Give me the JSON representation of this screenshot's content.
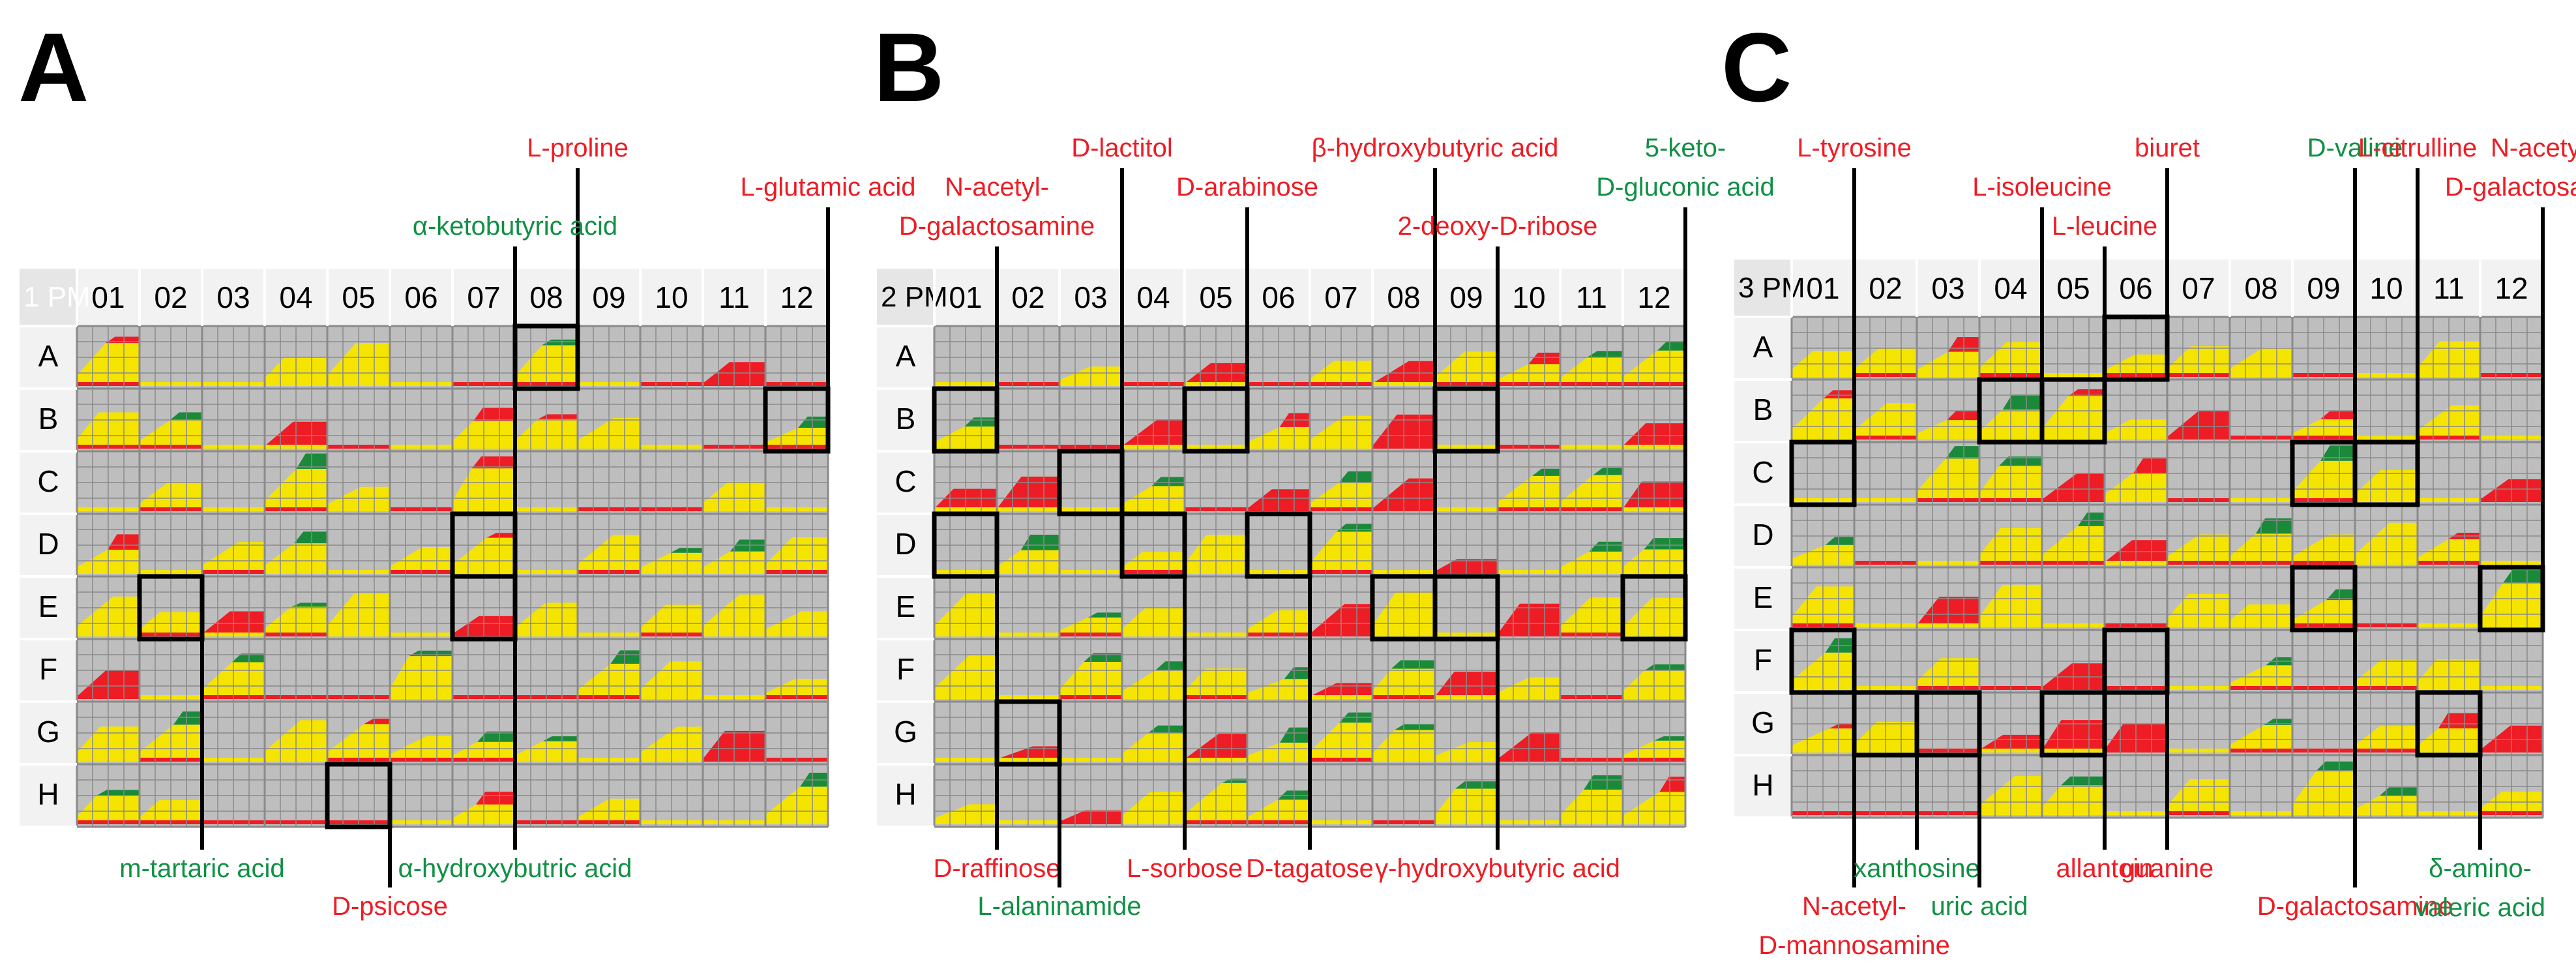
{
  "panels": [
    {
      "letter": "A",
      "plate_label": "1 PM",
      "columns": [
        "01",
        "02",
        "03",
        "04",
        "05",
        "06",
        "07",
        "08",
        "09",
        "10",
        "11",
        "12"
      ],
      "rows": [
        "A",
        "B",
        "C",
        "D",
        "E",
        "F",
        "G",
        "H"
      ],
      "highlights": [
        {
          "well": "A08",
          "name": "L-proline",
          "color": "red",
          "side": "top",
          "lines": [
            "L-proline"
          ]
        },
        {
          "well": "D07",
          "name": "α-ketobutyric acid",
          "color": "green",
          "side": "top",
          "lines": [
            "α-ketobutyric acid"
          ]
        },
        {
          "well": "B12",
          "name": "L-glutamic acid",
          "color": "red",
          "side": "top",
          "lines": [
            "L-glutamic acid"
          ]
        },
        {
          "well": "E02",
          "name": "m-tartaric acid",
          "color": "green",
          "side": "bottom",
          "lines": [
            "m-tartaric acid"
          ]
        },
        {
          "well": "H05",
          "name": "D-psicose",
          "color": "red",
          "side": "bottom",
          "lines": [
            "D-psicose"
          ]
        },
        {
          "well": "E07",
          "name": "α-hydroxybutric acid",
          "color": "green",
          "side": "bottom",
          "lines": [
            "α-hydroxybutric acid"
          ]
        }
      ]
    },
    {
      "letter": "B",
      "plate_label": "2 PM",
      "columns": [
        "01",
        "02",
        "03",
        "04",
        "05",
        "06",
        "07",
        "08",
        "09",
        "10",
        "11",
        "12"
      ],
      "rows": [
        "A",
        "B",
        "C",
        "D",
        "E",
        "F",
        "G",
        "H"
      ],
      "highlights": [
        {
          "well": "B01",
          "name": "N-acetyl-D-galactosamine",
          "color": "red",
          "side": "top",
          "lines": [
            "N-acetyl-",
            "D-galactosamine"
          ]
        },
        {
          "well": "C03",
          "name": "D-lactitol",
          "color": "red",
          "side": "top",
          "lines": [
            "D-lactitol"
          ]
        },
        {
          "well": "B05",
          "name": "D-arabinose",
          "color": "red",
          "side": "top",
          "lines": [
            "D-arabinose"
          ]
        },
        {
          "well": "E08",
          "name": "β-hydroxybutyric acid",
          "color": "red",
          "side": "top",
          "lines": [
            "β-hydroxybutyric acid"
          ]
        },
        {
          "well": "B09",
          "name": "2-deoxy-D-ribose",
          "color": "red",
          "side": "top",
          "lines": [
            "2-deoxy-D-ribose"
          ]
        },
        {
          "well": "E12",
          "name": "5-keto-D-gluconic acid",
          "color": "green",
          "side": "top",
          "lines": [
            "5-keto-",
            "D-gluconic acid"
          ]
        },
        {
          "well": "D01",
          "name": "D-raffinose",
          "color": "red",
          "side": "bottom",
          "lines": [
            "D-raffinose"
          ]
        },
        {
          "well": "G02",
          "name": "L-alaninamide",
          "color": "green",
          "side": "bottom",
          "lines": [
            "L-alaninamide"
          ]
        },
        {
          "well": "D04",
          "name": "L-sorbose",
          "color": "red",
          "side": "bottom",
          "lines": [
            "L-sorbose"
          ]
        },
        {
          "well": "D06",
          "name": "D-tagatose",
          "color": "red",
          "side": "bottom",
          "lines": [
            "D-tagatose"
          ]
        },
        {
          "well": "E09",
          "name": "γ-hydroxybutyric acid",
          "color": "red",
          "side": "bottom",
          "lines": [
            "γ-hydroxybutyric acid"
          ]
        }
      ]
    },
    {
      "letter": "C",
      "plate_label": "3 PM",
      "columns": [
        "01",
        "02",
        "03",
        "04",
        "05",
        "06",
        "07",
        "08",
        "09",
        "10",
        "11",
        "12"
      ],
      "rows": [
        "A",
        "B",
        "C",
        "D",
        "E",
        "F",
        "G",
        "H"
      ],
      "highlights": [
        {
          "well": "C01",
          "name": "L-tyrosine",
          "color": "red",
          "side": "top",
          "lines": [
            "L-tyrosine"
          ]
        },
        {
          "well": "B04",
          "name": "L-isoleucine",
          "color": "red",
          "side": "top",
          "lines": [
            "L-isoleucine"
          ]
        },
        {
          "well": "B05",
          "name": "L-leucine",
          "color": "red",
          "side": "top",
          "lines": [
            "L-leucine"
          ]
        },
        {
          "well": "A06",
          "name": "biuret",
          "color": "red",
          "side": "top",
          "lines": [
            "biuret"
          ]
        },
        {
          "well": "C09",
          "name": "D-valine",
          "color": "green",
          "side": "top",
          "lines": [
            "D-valine"
          ]
        },
        {
          "well": "C10",
          "name": "L-citrulline",
          "color": "red",
          "side": "top",
          "lines": [
            "L-citrulline"
          ]
        },
        {
          "well": "E12",
          "name": "N-acetyl-D-galactosamine",
          "color": "red",
          "side": "top",
          "lines": [
            "N-acetyl-",
            "D-galactosamine"
          ]
        },
        {
          "well": "F01",
          "name": "N-acetyl-D-mannosamine",
          "color": "red",
          "side": "bottom",
          "lines": [
            "N-acetyl-",
            "D-mannosamine"
          ]
        },
        {
          "well": "G02",
          "name": "xanthosine",
          "color": "green",
          "side": "bottom",
          "lines": [
            "xanthosine"
          ]
        },
        {
          "well": "G03",
          "name": "uric acid",
          "color": "green",
          "side": "bottom",
          "lines": [
            "uric acid"
          ]
        },
        {
          "well": "G05",
          "name": "allantoin",
          "color": "red",
          "side": "bottom",
          "lines": [
            "allantoin"
          ]
        },
        {
          "well": "F06",
          "name": "guanine",
          "color": "red",
          "side": "bottom",
          "lines": [
            "guanine"
          ]
        },
        {
          "well": "E09",
          "name": "D-galactosamine",
          "color": "red",
          "side": "bottom",
          "lines": [
            "D-galactosamine"
          ]
        },
        {
          "well": "G11",
          "name": "δ-amino-valeric acid",
          "color": "green",
          "side": "bottom",
          "lines": [
            "δ-amino-",
            "valeric acid"
          ]
        }
      ]
    }
  ],
  "colors": {
    "red_label": "#ee1c24",
    "green_label": "#109044",
    "grid_bg": "#bebebe",
    "grid_line": "#8a8a8a",
    "header_bg": "#f2f2f2",
    "curve_yellow": "#f5e400",
    "curve_green": "#1a8a3a",
    "curve_red": "#ee1c24"
  }
}
